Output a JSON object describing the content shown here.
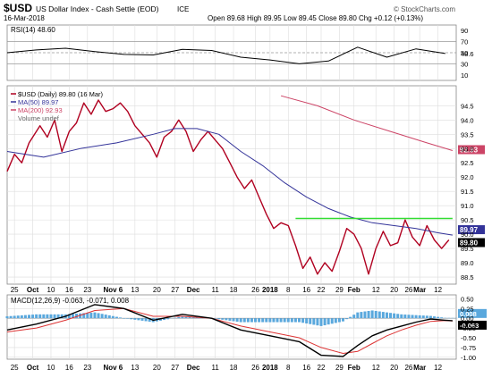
{
  "header": {
    "symbol": "$USD",
    "name": "US Dollar Index - Cash Settle (EOD)",
    "exchange": "ICE",
    "date": "16-Mar-2018",
    "quote": "Open 89.68  High 89.95  Low 89.45  Close 89.80  Chg +0.12 (+0.13%)",
    "source": "© StockCharts.com"
  },
  "colors": {
    "price": "#b00020",
    "ma50": "#333399",
    "ma200": "#cc4466",
    "resistance": "#33dd33",
    "macd": "#000000",
    "signal": "#dd3333",
    "histogram": "#5aa8dd",
    "rsi": "#000000",
    "grid": "#dddddd"
  },
  "chart_data": [
    {
      "type": "line",
      "panel": "rsi",
      "legend": [
        "RSI(14) 48.60"
      ],
      "yticks": [
        10,
        30,
        48.6,
        50,
        70,
        90
      ],
      "ylim": [
        0,
        100
      ],
      "reference_lines": [
        30,
        50,
        70
      ],
      "x_index": [
        0,
        8,
        16,
        24,
        32,
        40,
        48,
        56,
        64,
        72,
        80,
        88,
        96,
        104,
        112,
        120
      ],
      "values": [
        50,
        55,
        58,
        52,
        47,
        46,
        56,
        54,
        42,
        37,
        30,
        35,
        60,
        42,
        57,
        48.6
      ]
    },
    {
      "type": "line",
      "panel": "price",
      "legend": [
        "$USD (Daily) 89.80 (16 Mar)",
        "MA(50) 89.97",
        "MA(200) 92.93",
        "Volume undef"
      ],
      "ylim": [
        88.25,
        95.2
      ],
      "yticks": [
        88.5,
        89.0,
        89.5,
        90.0,
        90.5,
        91.0,
        91.5,
        92.0,
        92.5,
        93.0,
        93.5,
        94.0,
        94.5
      ],
      "tags": [
        "92.93",
        "89.97",
        "89.80"
      ],
      "series": [
        {
          "name": "$USD",
          "x_index": [
            0,
            2,
            4,
            6,
            9,
            11,
            13,
            15,
            17,
            19,
            21,
            23,
            25,
            27,
            29,
            31,
            33,
            35,
            37,
            39,
            41,
            43,
            45,
            47,
            49,
            51,
            53,
            55,
            57,
            59,
            61,
            63,
            65,
            67,
            69,
            71,
            73,
            75,
            77,
            79,
            81,
            83,
            85,
            87,
            89,
            91,
            93,
            95,
            97,
            99,
            101,
            103,
            105,
            107,
            109,
            111,
            113,
            115,
            117,
            119,
            121
          ],
          "values": [
            92.2,
            92.8,
            92.5,
            93.2,
            93.8,
            93.4,
            94.0,
            92.9,
            93.6,
            93.9,
            94.6,
            94.2,
            94.7,
            94.3,
            94.4,
            94.6,
            94.3,
            93.8,
            93.5,
            93.2,
            92.7,
            93.4,
            93.6,
            94.0,
            93.6,
            92.9,
            93.3,
            93.6,
            93.3,
            93.0,
            92.5,
            92.0,
            91.6,
            91.9,
            91.3,
            90.7,
            90.2,
            90.4,
            90.3,
            89.6,
            88.8,
            89.2,
            88.6,
            89.0,
            88.7,
            89.4,
            90.2,
            90.0,
            89.5,
            88.6,
            89.5,
            90.1,
            89.6,
            89.7,
            90.5,
            89.9,
            89.6,
            90.3,
            89.8,
            89.5,
            89.8
          ]
        },
        {
          "name": "MA(50)",
          "x_index": [
            0,
            10,
            20,
            30,
            40,
            46,
            52,
            58,
            64,
            70,
            76,
            82,
            88,
            94,
            100,
            106,
            112,
            118,
            122
          ],
          "values": [
            92.9,
            92.7,
            93.0,
            93.2,
            93.5,
            93.7,
            93.7,
            93.5,
            92.9,
            92.4,
            91.8,
            91.3,
            90.9,
            90.6,
            90.4,
            90.3,
            90.2,
            90.05,
            89.97
          ]
        },
        {
          "name": "MA(200)",
          "x_index": [
            75,
            85,
            95,
            105,
            115,
            122
          ],
          "values": [
            94.85,
            94.5,
            94.0,
            93.6,
            93.2,
            92.93
          ]
        },
        {
          "name": "Resistance",
          "x_index": [
            79,
            122
          ],
          "values": [
            90.55,
            90.55
          ]
        }
      ]
    },
    {
      "type": "line",
      "panel": "macd",
      "legend": [
        "MACD(12,26,9) -0.063, -0.071, 0.008"
      ],
      "ylim": [
        -1.05,
        0.6
      ],
      "yticks": [
        -1.0,
        -0.75,
        -0.5,
        -0.25,
        0.0,
        0.25,
        0.5
      ],
      "tags": [
        "0.008",
        "-0.063"
      ],
      "series": [
        {
          "name": "MACD",
          "x_index": [
            0,
            8,
            16,
            24,
            32,
            40,
            48,
            56,
            64,
            72,
            80,
            86,
            92,
            96,
            100,
            104,
            108,
            112,
            116,
            120,
            122
          ],
          "values": [
            -0.3,
            -0.15,
            0.05,
            0.35,
            0.25,
            -0.05,
            0.1,
            0.0,
            -0.3,
            -0.45,
            -0.6,
            -0.95,
            -0.98,
            -0.7,
            -0.45,
            -0.3,
            -0.2,
            -0.1,
            -0.02,
            -0.05,
            -0.063
          ]
        },
        {
          "name": "Signal",
          "x_index": [
            0,
            8,
            16,
            24,
            32,
            40,
            48,
            56,
            64,
            72,
            80,
            86,
            92,
            96,
            100,
            104,
            108,
            112,
            116,
            120,
            122
          ],
          "values": [
            -0.35,
            -0.25,
            -0.05,
            0.2,
            0.25,
            0.05,
            0.05,
            0.0,
            -0.2,
            -0.35,
            -0.5,
            -0.75,
            -0.9,
            -0.85,
            -0.65,
            -0.45,
            -0.3,
            -0.18,
            -0.08,
            -0.06,
            -0.071
          ]
        },
        {
          "name": "Histogram",
          "x_index": [
            0,
            8,
            16,
            24,
            32,
            40,
            48,
            56,
            64,
            72,
            80,
            86,
            92,
            96,
            100,
            104,
            108,
            112,
            116,
            120,
            122
          ],
          "values": [
            0.05,
            0.1,
            0.1,
            0.15,
            0.0,
            -0.1,
            0.05,
            0.0,
            -0.1,
            -0.1,
            -0.1,
            -0.2,
            -0.08,
            0.15,
            0.2,
            0.15,
            0.1,
            0.08,
            0.06,
            0.01,
            0.008
          ]
        }
      ]
    }
  ],
  "x_axis": {
    "labels": [
      {
        "i": 2,
        "text": "25"
      },
      {
        "i": 7,
        "text": "Oct"
      },
      {
        "i": 12,
        "text": "10"
      },
      {
        "i": 17,
        "text": "16"
      },
      {
        "i": 22,
        "text": "23"
      },
      {
        "i": 29,
        "text": "Nov 6"
      },
      {
        "i": 35,
        "text": "13"
      },
      {
        "i": 41,
        "text": "20"
      },
      {
        "i": 46,
        "text": "27"
      },
      {
        "i": 51,
        "text": "Dec"
      },
      {
        "i": 57,
        "text": "11"
      },
      {
        "i": 62,
        "text": "18"
      },
      {
        "i": 68,
        "text": "26"
      },
      {
        "i": 72,
        "text": "2018"
      },
      {
        "i": 77,
        "text": "8"
      },
      {
        "i": 82,
        "text": "16"
      },
      {
        "i": 86,
        "text": "22"
      },
      {
        "i": 91,
        "text": "29"
      },
      {
        "i": 95,
        "text": "Feb"
      },
      {
        "i": 101,
        "text": "12"
      },
      {
        "i": 106,
        "text": "20"
      },
      {
        "i": 110,
        "text": "26"
      },
      {
        "i": 113,
        "text": "Mar"
      },
      {
        "i": 118,
        "text": "12"
      }
    ],
    "n": 124
  }
}
